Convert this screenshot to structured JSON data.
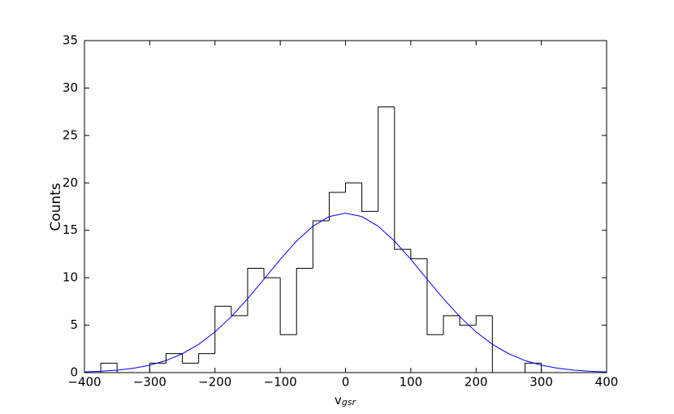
{
  "chart_data": {
    "type": "histogram",
    "xlabel": {
      "text": "v",
      "subscript": "gsr"
    },
    "ylabel": "Counts",
    "bins": [
      -375,
      -350,
      -325,
      -300,
      -275,
      -250,
      -225,
      -200,
      -175,
      -150,
      -125,
      -100,
      -75,
      -50,
      -25,
      0,
      25,
      50,
      75,
      100,
      125,
      150,
      175,
      200,
      225,
      250,
      275,
      300
    ],
    "values": [
      1,
      0,
      0,
      1,
      2,
      1,
      2,
      7,
      6,
      11,
      10,
      4,
      11,
      16,
      19,
      20,
      17,
      28,
      13,
      12,
      4,
      6,
      5,
      6,
      0,
      0,
      1
    ],
    "color": "#000000",
    "curve": {
      "type": "line",
      "color": "#0000ff",
      "x": [
        -400,
        -375,
        -350,
        -325,
        -300,
        -275,
        -250,
        -225,
        -200,
        -175,
        -150,
        -125,
        -100,
        -75,
        -50,
        -25,
        0,
        25,
        50,
        75,
        100,
        125,
        150,
        175,
        200,
        225,
        250,
        275,
        300,
        325,
        350,
        375,
        400
      ],
      "values": [
        0.07,
        0.14,
        0.26,
        0.46,
        0.78,
        1.27,
        1.99,
        2.98,
        4.29,
        5.9,
        7.79,
        9.85,
        11.94,
        13.86,
        15.43,
        16.45,
        16.8,
        16.45,
        15.43,
        13.86,
        11.94,
        9.85,
        7.79,
        5.9,
        4.29,
        2.98,
        1.99,
        1.27,
        0.78,
        0.46,
        0.26,
        0.14,
        0.07
      ]
    },
    "xlim": [
      -400,
      400
    ],
    "ylim": [
      0,
      35
    ],
    "xticks": [
      {
        "value": -400,
        "label": "−400"
      },
      {
        "value": -300,
        "label": "−300"
      },
      {
        "value": -200,
        "label": "−200"
      },
      {
        "value": -100,
        "label": "−100"
      },
      0,
      100,
      200,
      300,
      400
    ],
    "yticks": [
      0,
      5,
      10,
      15,
      20,
      25,
      30,
      35
    ]
  }
}
